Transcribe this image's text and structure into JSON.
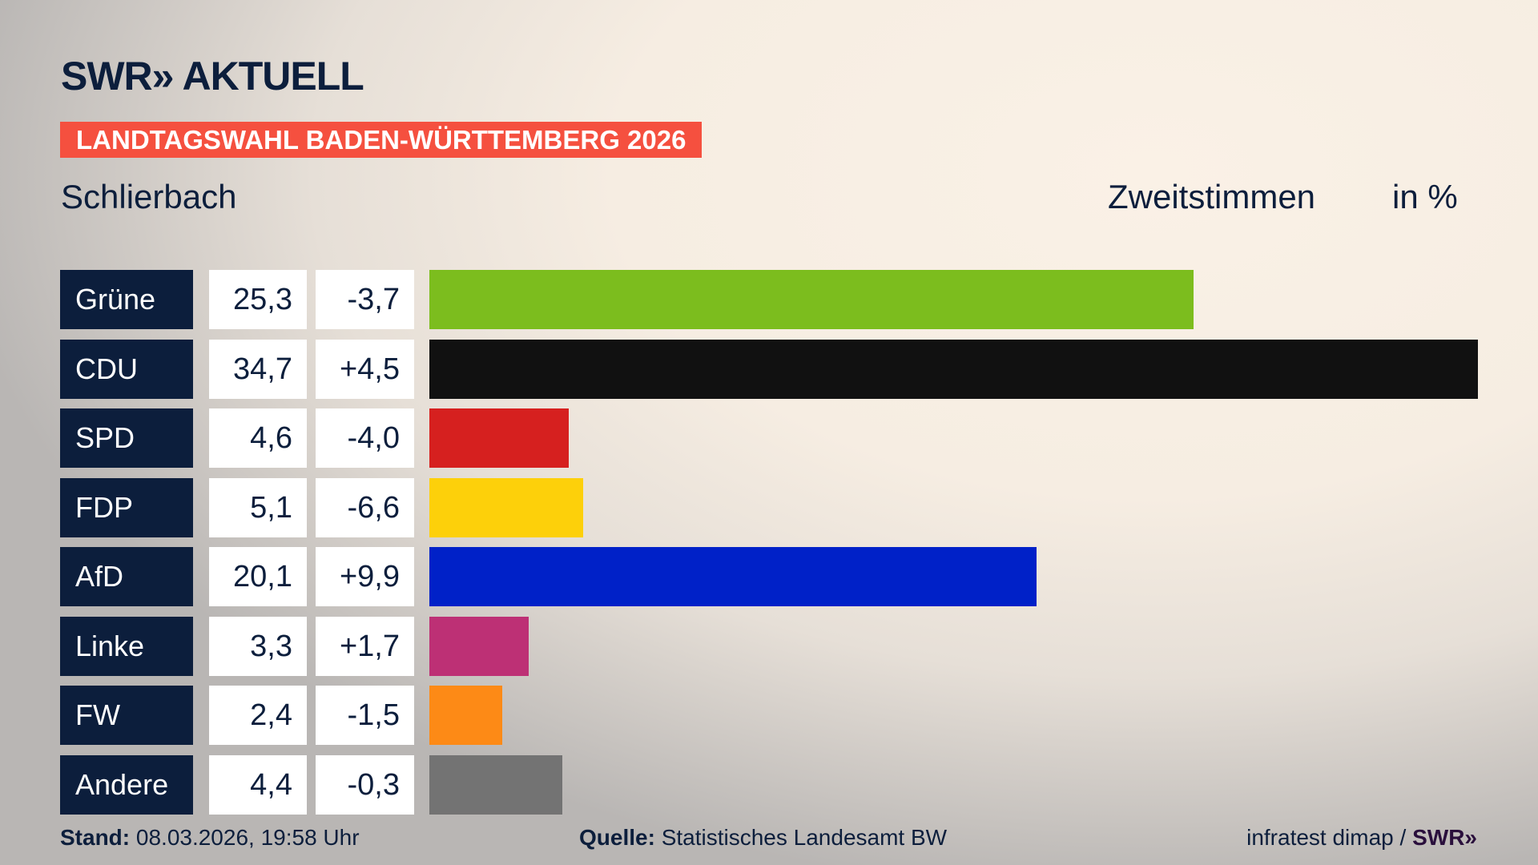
{
  "header": {
    "logo": "SWR» AKTUELL",
    "banner": "LANDTAGSWAHL BADEN-WÜRTTEMBERG 2026",
    "region": "Schlierbach",
    "measure": "Zweitstimmen",
    "unit": "in %"
  },
  "chart_data": {
    "type": "bar",
    "orientation": "horizontal",
    "categories": [
      "Grüne",
      "CDU",
      "SPD",
      "FDP",
      "AfD",
      "Linke",
      "FW",
      "Andere"
    ],
    "values": [
      25.3,
      34.7,
      4.6,
      5.1,
      20.1,
      3.3,
      2.4,
      4.4
    ],
    "value_labels": [
      "25,3",
      "34,7",
      "4,6",
      "5,1",
      "20,1",
      "3,3",
      "2,4",
      "4,4"
    ],
    "change_labels": [
      "-3,7",
      "+4,5",
      "-4,0",
      "-6,6",
      "+9,9",
      "+1,7",
      "-1,5",
      "-0,3"
    ],
    "changes": [
      -3.7,
      4.5,
      -4.0,
      -6.6,
      9.9,
      1.7,
      -1.5,
      -0.3
    ],
    "colors": [
      "#7cbd1e",
      "#111111",
      "#d6201f",
      "#fdd00a",
      "#0021c8",
      "#bd3075",
      "#fd8a16",
      "#737373"
    ],
    "xlim": [
      0,
      34.7
    ],
    "grid": false
  },
  "footer": {
    "stand_label": "Stand:",
    "stand_value": "08.03.2026, 19:58 Uhr",
    "source_label": "Quelle:",
    "source_value": "Statistisches Landesamt BW",
    "credit": "infratest dimap /",
    "credit_logo": "SWR»"
  }
}
